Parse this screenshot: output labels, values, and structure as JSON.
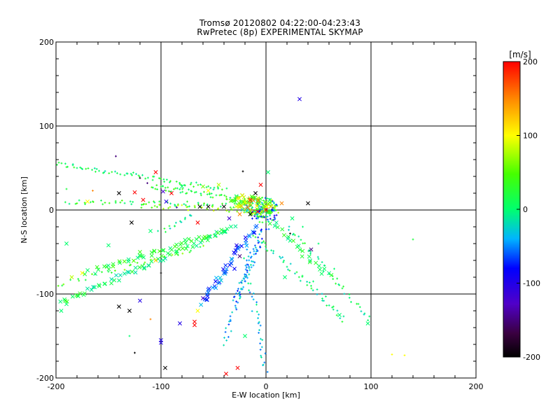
{
  "chart_data": {
    "type": "scatter",
    "title": "Tromsø 20120802 04:22:00-04:23:43",
    "subtitle": "RwPretec (8p) EXPERIMENTAL SKYMAP",
    "xlabel": "E-W location [km]",
    "ylabel": "N-S location [km]",
    "xlim": [
      -200,
      200
    ],
    "ylim": [
      -200,
      200
    ],
    "x_ticks": [
      "-200",
      "-100",
      "0",
      "100",
      "200"
    ],
    "y_ticks": [
      "-200",
      "-100",
      "0",
      "100",
      "200"
    ],
    "grid": true,
    "colorbar": {
      "unit": "[m/s]",
      "range": [
        -200,
        200
      ],
      "ticks": [
        "200",
        "100",
        "0",
        "-100",
        "-200"
      ]
    },
    "points_note": "estimated",
    "points": [
      {
        "x": 32,
        "y": 132,
        "v": -100,
        "m": "x"
      },
      {
        "x": -143,
        "y": 64,
        "v": -150,
        "m": "+"
      },
      {
        "x": -105,
        "y": 45,
        "v": 200,
        "m": "x"
      },
      {
        "x": -113,
        "y": 32,
        "v": -150,
        "m": "+"
      },
      {
        "x": -120,
        "y": 38,
        "v": -170,
        "m": "+"
      },
      {
        "x": -140,
        "y": 20,
        "v": -200,
        "m": "x"
      },
      {
        "x": -125,
        "y": 21,
        "v": 200,
        "m": "x"
      },
      {
        "x": -117,
        "y": 12,
        "v": 200,
        "m": "x"
      },
      {
        "x": -128,
        "y": -15,
        "v": -200,
        "m": "x"
      },
      {
        "x": -98,
        "y": 22,
        "v": -120,
        "m": "x"
      },
      {
        "x": -95,
        "y": 10,
        "v": -100,
        "m": "x"
      },
      {
        "x": -90,
        "y": 20,
        "v": 200,
        "m": "x"
      },
      {
        "x": -80,
        "y": 28,
        "v": 0,
        "m": "x"
      },
      {
        "x": -60,
        "y": 28,
        "v": 60,
        "m": "x"
      },
      {
        "x": -55,
        "y": 23,
        "v": 100,
        "m": "x"
      },
      {
        "x": -63,
        "y": 4,
        "v": -200,
        "m": "x"
      },
      {
        "x": -55,
        "y": 4,
        "v": -200,
        "m": "x"
      },
      {
        "x": -65,
        "y": -15,
        "v": 200,
        "m": "x"
      },
      {
        "x": -22,
        "y": 46,
        "v": -200,
        "m": "+"
      },
      {
        "x": -5,
        "y": 30,
        "v": 200,
        "m": "x"
      },
      {
        "x": -10,
        "y": 20,
        "v": -200,
        "m": "x"
      },
      {
        "x": 2,
        "y": 45,
        "v": 0,
        "m": "x"
      },
      {
        "x": 40,
        "y": 8,
        "v": -200,
        "m": "x"
      },
      {
        "x": 23,
        "y": -28,
        "v": -200,
        "m": "+"
      },
      {
        "x": 43,
        "y": -47,
        "v": -150,
        "m": "x"
      },
      {
        "x": -8,
        "y": -2,
        "v": 200,
        "m": "x"
      },
      {
        "x": -15,
        "y": -5,
        "v": -200,
        "m": "x"
      },
      {
        "x": 0,
        "y": 0,
        "v": 200,
        "m": "x"
      },
      {
        "x": -25,
        "y": -5,
        "v": 150,
        "m": "x"
      },
      {
        "x": -35,
        "y": -10,
        "v": -120,
        "m": "x"
      },
      {
        "x": -40,
        "y": 4,
        "v": -200,
        "m": "x"
      },
      {
        "x": -28,
        "y": -42,
        "v": -100,
        "m": "x"
      },
      {
        "x": -25,
        "y": -55,
        "v": -150,
        "m": "x"
      },
      {
        "x": -30,
        "y": -70,
        "v": -80,
        "m": "x"
      },
      {
        "x": -40,
        "y": -75,
        "v": -60,
        "m": "x"
      },
      {
        "x": -48,
        "y": -85,
        "v": -80,
        "m": "x"
      },
      {
        "x": -55,
        "y": -95,
        "v": -60,
        "m": "x"
      },
      {
        "x": -60,
        "y": -105,
        "v": -120,
        "m": "x"
      },
      {
        "x": -65,
        "y": -120,
        "v": 100,
        "m": "x"
      },
      {
        "x": -68,
        "y": -137,
        "v": 200,
        "m": "x"
      },
      {
        "x": -68,
        "y": -133,
        "v": 200,
        "m": "x"
      },
      {
        "x": -82,
        "y": -135,
        "v": -100,
        "m": "x"
      },
      {
        "x": -120,
        "y": -108,
        "v": -100,
        "m": "x"
      },
      {
        "x": -130,
        "y": -120,
        "v": -200,
        "m": "x"
      },
      {
        "x": -140,
        "y": -115,
        "v": -200,
        "m": "x"
      },
      {
        "x": -100,
        "y": -155,
        "v": -100,
        "m": "x"
      },
      {
        "x": -100,
        "y": -158,
        "v": -100,
        "m": "x"
      },
      {
        "x": -96,
        "y": -188,
        "v": -200,
        "m": "x"
      },
      {
        "x": -38,
        "y": -195,
        "v": 200,
        "m": "x"
      },
      {
        "x": -27,
        "y": -188,
        "v": 200,
        "m": "x"
      },
      {
        "x": -20,
        "y": -150,
        "v": 0,
        "m": "x"
      },
      {
        "x": 70,
        "y": -125,
        "v": 0,
        "m": "x"
      },
      {
        "x": 97,
        "y": -135,
        "v": 0,
        "m": "x"
      },
      {
        "x": 120,
        "y": -172,
        "v": 100,
        "m": "+"
      },
      {
        "x": 132,
        "y": -173,
        "v": 100,
        "m": "+"
      },
      {
        "x": 140,
        "y": -35,
        "v": 20,
        "m": "+"
      },
      {
        "x": -190,
        "y": 25,
        "v": 20,
        "m": "+"
      },
      {
        "x": -170,
        "y": 10,
        "v": 100,
        "m": "x"
      },
      {
        "x": -165,
        "y": 23,
        "v": 150,
        "m": "+"
      },
      {
        "x": -185,
        "y": -80,
        "v": 80,
        "m": "x"
      },
      {
        "x": -175,
        "y": -75,
        "v": 100,
        "m": "x"
      },
      {
        "x": -190,
        "y": -112,
        "v": 0,
        "m": "x"
      },
      {
        "x": -195,
        "y": -120,
        "v": 0,
        "m": "x"
      },
      {
        "x": -190,
        "y": -40,
        "v": 0,
        "m": "x"
      },
      {
        "x": -150,
        "y": -42,
        "v": 0,
        "m": "x"
      },
      {
        "x": -120,
        "y": -50,
        "v": 40,
        "m": "x"
      },
      {
        "x": -105,
        "y": -60,
        "v": 120,
        "m": "x"
      },
      {
        "x": -100,
        "y": -75,
        "v": -200,
        "m": "+"
      },
      {
        "x": -110,
        "y": -25,
        "v": 0,
        "m": "x"
      },
      {
        "x": -130,
        "y": -150,
        "v": 0,
        "m": "+"
      },
      {
        "x": -110,
        "y": -130,
        "v": 150,
        "m": "+"
      },
      {
        "x": -125,
        "y": -170,
        "v": -200,
        "m": "+"
      },
      {
        "x": -85,
        "y": 3,
        "v": -120,
        "m": "+"
      },
      {
        "x": -75,
        "y": 10,
        "v": 30,
        "m": "+"
      },
      {
        "x": -45,
        "y": 30,
        "v": 80,
        "m": "x"
      },
      {
        "x": -15,
        "y": 12,
        "v": 200,
        "m": "x"
      },
      {
        "x": 15,
        "y": 8,
        "v": 150,
        "m": "x"
      },
      {
        "x": 25,
        "y": -10,
        "v": 0,
        "m": "x"
      },
      {
        "x": 35,
        "y": -20,
        "v": 0,
        "m": "+"
      },
      {
        "x": 50,
        "y": -40,
        "v": 0,
        "m": "+"
      },
      {
        "x": 65,
        "y": -70,
        "v": 0,
        "m": "+"
      },
      {
        "x": 45,
        "y": -85,
        "v": 0,
        "m": "+"
      },
      {
        "x": 18,
        "y": -80,
        "v": 0,
        "m": "x"
      },
      {
        "x": -180,
        "y": 50,
        "v": 0,
        "m": "+"
      },
      {
        "x": -100,
        "y": 28,
        "v": 20,
        "m": "+"
      }
    ],
    "streaks": [
      {
        "x1": -200,
        "y1": 55,
        "x2": -40,
        "y2": 25,
        "v": 10,
        "n": 70,
        "m": "+"
      },
      {
        "x1": -110,
        "y1": 28,
        "x2": -5,
        "y2": 10,
        "v": 20,
        "n": 60,
        "m": "+"
      },
      {
        "x1": -190,
        "y1": 10,
        "x2": -20,
        "y2": 5,
        "v": 20,
        "n": 55,
        "m": "+"
      },
      {
        "x1": -120,
        "y1": 5,
        "x2": 10,
        "y2": -2,
        "v": 60,
        "n": 40,
        "m": "+"
      },
      {
        "x1": -195,
        "y1": -110,
        "x2": -30,
        "y2": -20,
        "v": 10,
        "n": 70,
        "m": "x"
      },
      {
        "x1": -170,
        "y1": -75,
        "x2": -40,
        "y2": -25,
        "v": 20,
        "n": 50,
        "m": "x"
      },
      {
        "x1": -200,
        "y1": -90,
        "x2": -60,
        "y2": -45,
        "v": 40,
        "n": 30,
        "m": "+"
      },
      {
        "x1": -30,
        "y1": -110,
        "x2": 0,
        "y2": -20,
        "v": -50,
        "n": 45,
        "m": "+"
      },
      {
        "x1": -60,
        "y1": -110,
        "x2": -10,
        "y2": -20,
        "v": -60,
        "n": 45,
        "m": "x"
      },
      {
        "x1": -40,
        "y1": -160,
        "x2": -10,
        "y2": -40,
        "v": -40,
        "n": 40,
        "m": "+"
      },
      {
        "x1": -10,
        "y1": -30,
        "x2": 75,
        "y2": -130,
        "v": 0,
        "n": 50,
        "m": "+"
      },
      {
        "x1": 20,
        "y1": -20,
        "x2": 100,
        "y2": -130,
        "v": 5,
        "n": 40,
        "m": "+"
      },
      {
        "x1": 5,
        "y1": -15,
        "x2": 60,
        "y2": -80,
        "v": 10,
        "n": 25,
        "m": "x"
      },
      {
        "x1": -100,
        "y1": -25,
        "x2": -70,
        "y2": -5,
        "v": 0,
        "n": 15,
        "m": "+"
      },
      {
        "x1": -20,
        "y1": -50,
        "x2": 0,
        "y2": -190,
        "v": -30,
        "n": 40,
        "m": "+"
      }
    ],
    "clusters": [
      {
        "x": -5,
        "y": 3,
        "rx": 16,
        "ry": 12,
        "v": 0,
        "n": 110,
        "m": "+"
      },
      {
        "x": -8,
        "y": 5,
        "rx": 18,
        "ry": 10,
        "v": 50,
        "n": 45,
        "m": "x"
      },
      {
        "x": -2,
        "y": -5,
        "rx": 14,
        "ry": 10,
        "v": -40,
        "n": 35,
        "m": "+"
      },
      {
        "x": -20,
        "y": 10,
        "rx": 15,
        "ry": 8,
        "v": 80,
        "n": 30,
        "m": "x"
      }
    ]
  }
}
